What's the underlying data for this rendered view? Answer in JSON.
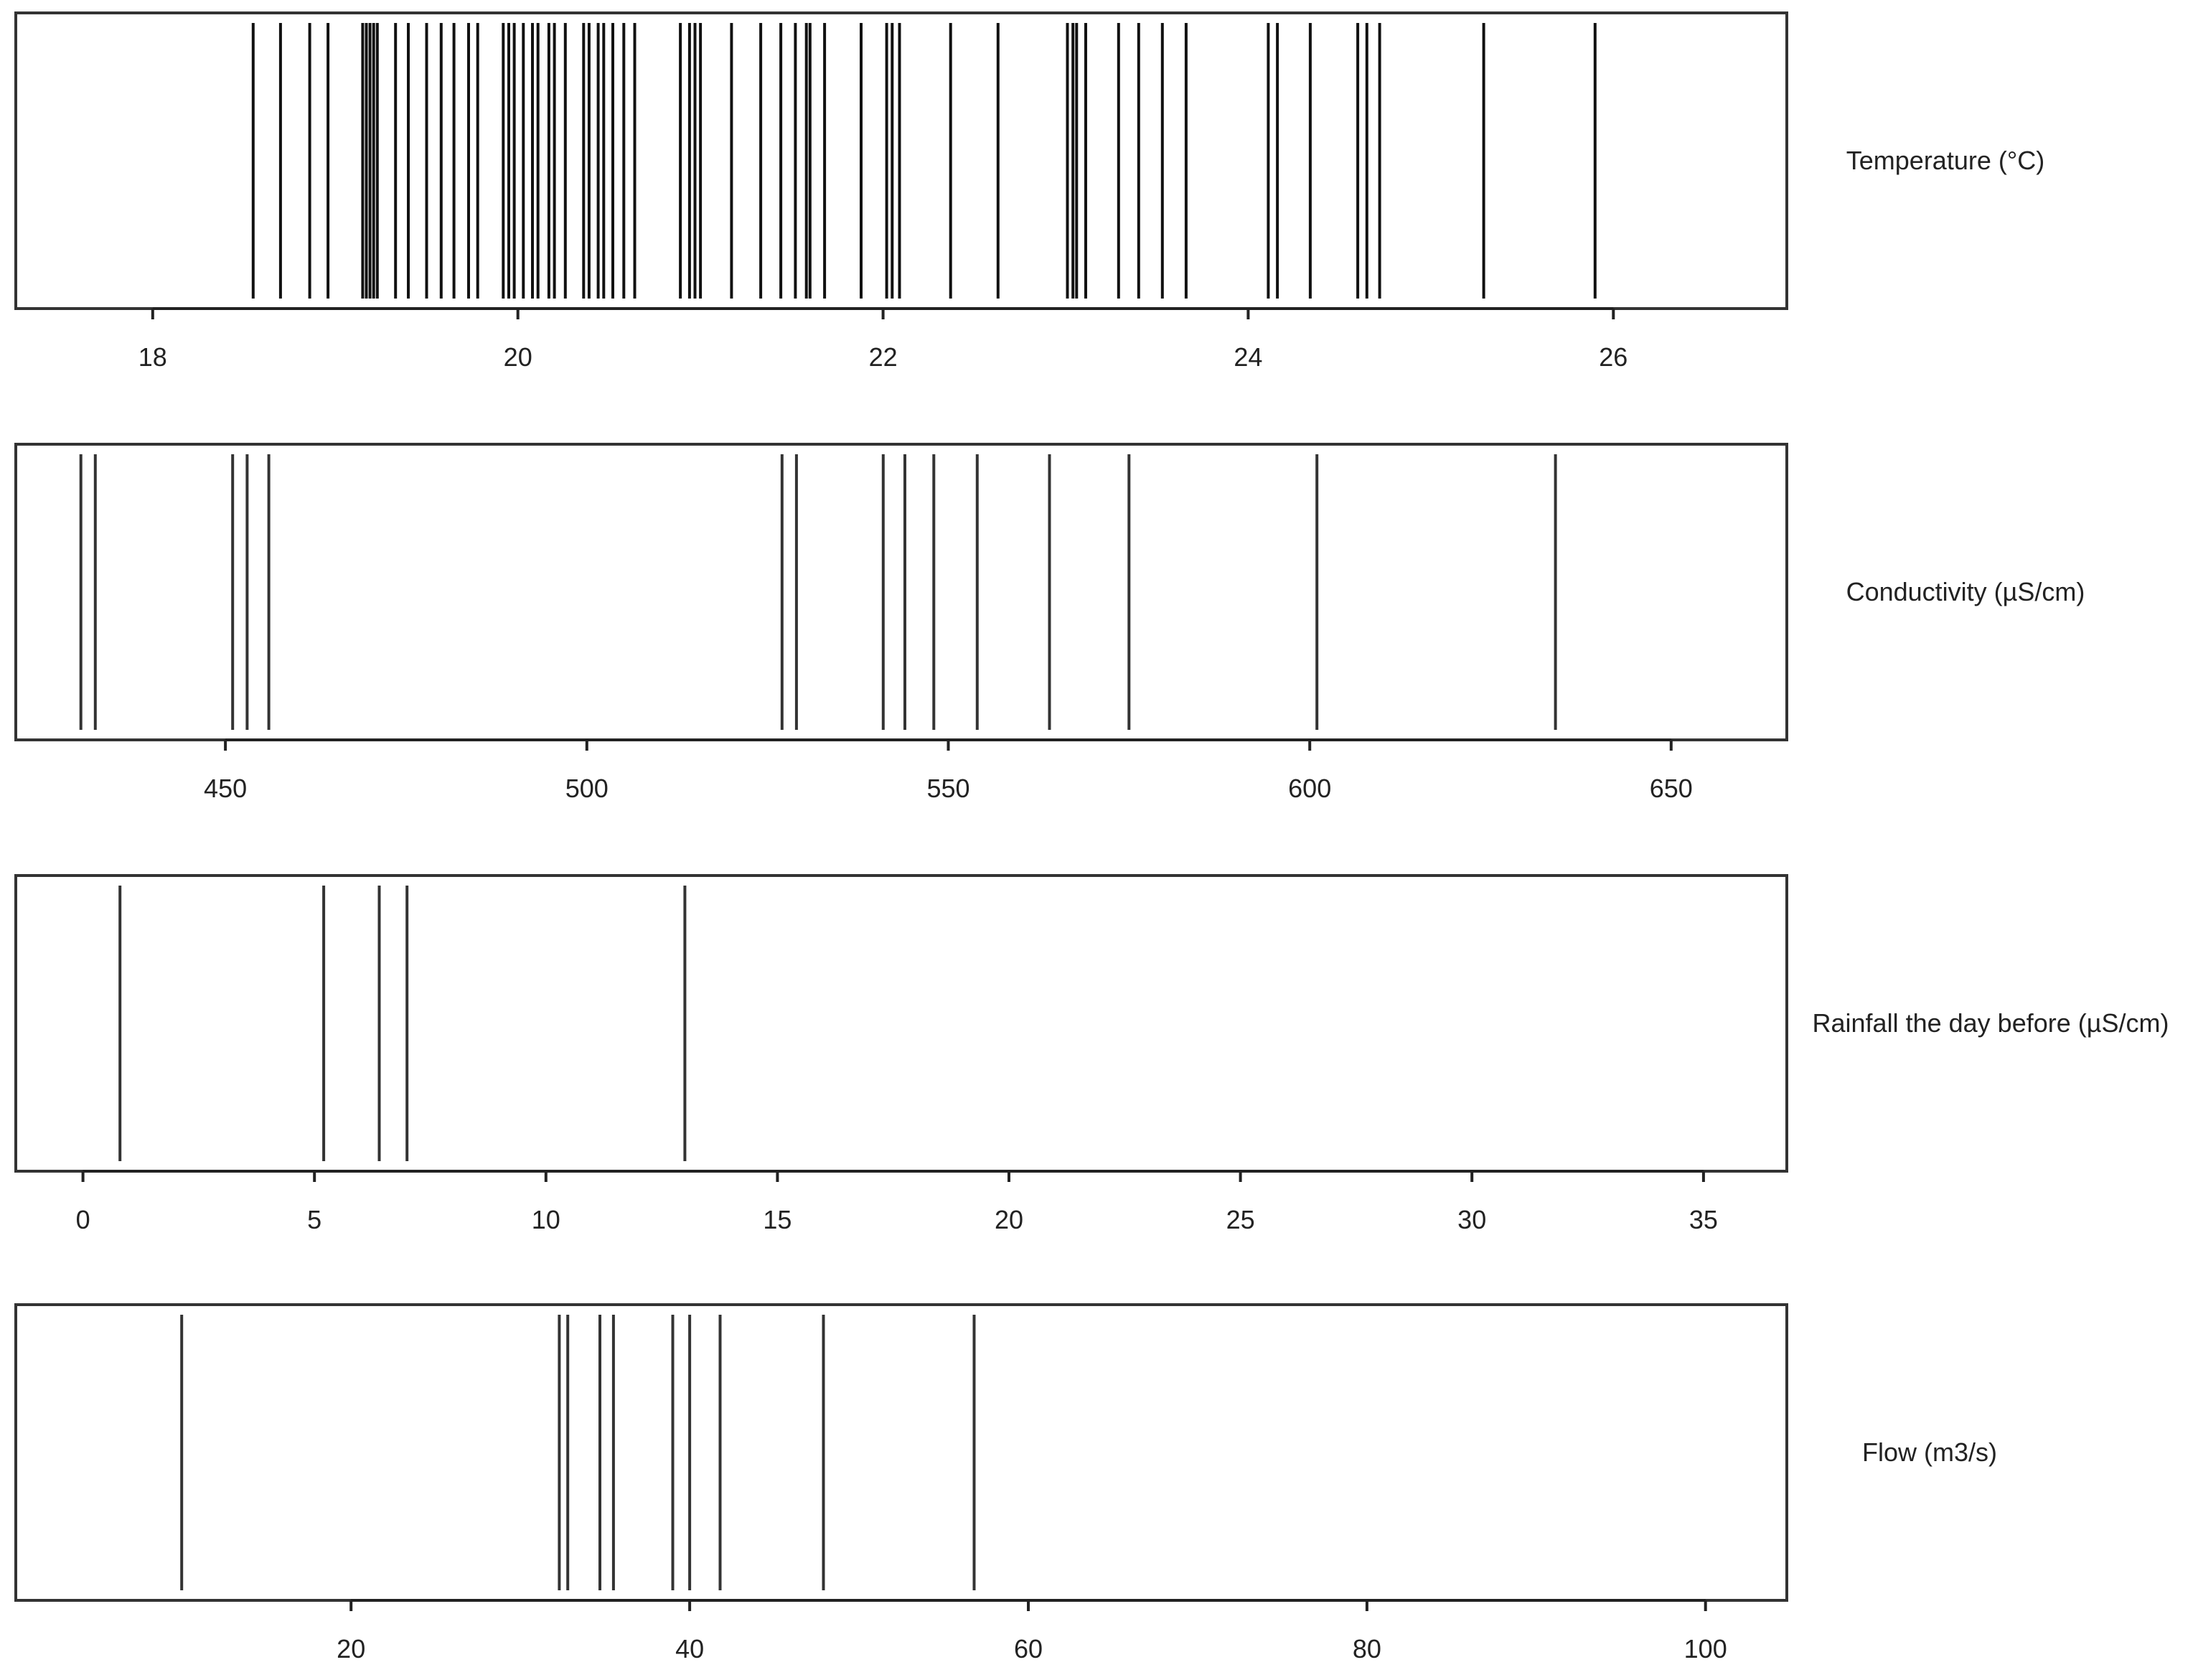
{
  "chart_data": [
    {
      "type": "strip",
      "label": "Temperature (°C)",
      "ticks": [
        18,
        20,
        22,
        24,
        26
      ],
      "tick_labels": [
        "18",
        "20",
        "22",
        "24",
        "26"
      ],
      "xlim": [
        17.25,
        26.95
      ],
      "values": [
        18.55,
        18.7,
        18.86,
        18.96,
        19.15,
        19.17,
        19.19,
        19.21,
        19.23,
        19.33,
        19.4,
        19.5,
        19.58,
        19.65,
        19.73,
        19.78,
        19.92,
        19.95,
        19.98,
        20.03,
        20.08,
        20.11,
        20.17,
        20.2,
        20.26,
        20.36,
        20.39,
        20.44,
        20.47,
        20.52,
        20.58,
        20.64,
        20.89,
        20.94,
        20.97,
        21.0,
        21.17,
        21.33,
        21.44,
        21.52,
        21.58,
        21.6,
        21.68,
        21.88,
        22.02,
        22.05,
        22.09,
        22.37,
        22.63,
        23.01,
        23.04,
        23.06,
        23.11,
        23.29,
        23.4,
        23.53,
        23.66,
        24.11,
        24.16,
        24.34,
        24.6,
        24.65,
        24.72,
        25.29,
        25.9
      ]
    },
    {
      "type": "strip",
      "label": "Conductivity (µS/cm)",
      "ticks": [
        450,
        500,
        550,
        600,
        650
      ],
      "tick_labels": [
        "450",
        "500",
        "550",
        "600",
        "650"
      ],
      "xlim": [
        421,
        666
      ],
      "values": [
        430,
        432,
        451,
        453,
        456,
        527,
        529,
        541,
        544,
        548,
        554,
        564,
        575,
        601,
        634
      ]
    },
    {
      "type": "strip",
      "label": "Rainfall the day before (µS/cm)",
      "ticks": [
        0,
        5,
        10,
        15,
        20,
        25,
        30,
        35
      ],
      "tick_labels": [
        "0",
        "5",
        "10",
        "15",
        "20",
        "25",
        "30",
        "35"
      ],
      "xlim": [
        -1.45,
        36.8
      ],
      "values": [
        0.8,
        5.2,
        6.4,
        7.0,
        13.0
      ]
    },
    {
      "type": "strip",
      "label": "Flow (m3/s)",
      "ticks": [
        20,
        40,
        60,
        80,
        100
      ],
      "tick_labels": [
        "20",
        "40",
        "60",
        "80",
        "100"
      ],
      "xlim": [
        0.2,
        104.8
      ],
      "values": [
        10.0,
        32.3,
        32.8,
        34.7,
        35.5,
        39.0,
        40.0,
        41.8,
        47.9,
        56.8
      ]
    }
  ]
}
